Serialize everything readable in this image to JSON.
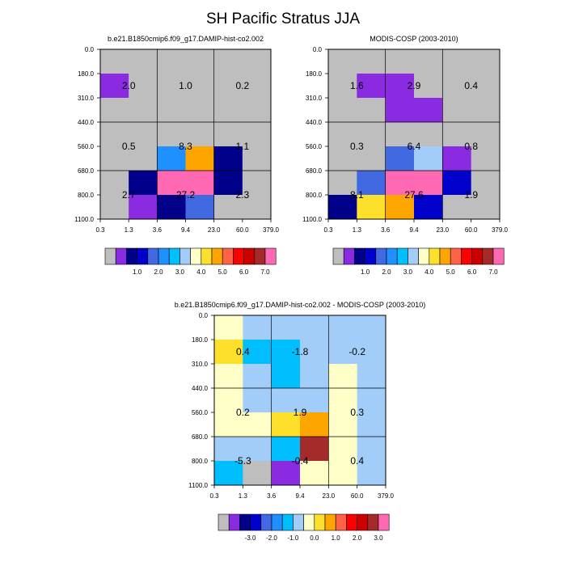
{
  "title": "SH Pacific Stratus JJA",
  "colors": {
    "missing": "#bebebe",
    "grid": "#000000"
  },
  "abs_palette": [
    "#bebebe",
    "#8a2be2",
    "#00008b",
    "#0000cd",
    "#4169e1",
    "#1e90ff",
    "#00bfff",
    "#a2cdf8",
    "#ffffc8",
    "#fde02b",
    "#ffa500",
    "#ff6347",
    "#ff0000",
    "#cd0000",
    "#a52a2a",
    "#ff69b4"
  ],
  "diff_palette": [
    "#bebebe",
    "#8a2be2",
    "#00008b",
    "#0000cd",
    "#4169e1",
    "#1e90ff",
    "#00bfff",
    "#a2cdf8",
    "#ffffc8",
    "#fde02b",
    "#ffa500",
    "#ff6347",
    "#ff0000",
    "#cd0000",
    "#a52a2a",
    "#ff69b4"
  ],
  "chart_data": [
    {
      "type": "heatmap",
      "title": "b.e21.B1850cmip6.f09_g17.DAMIP-hist-co2.002",
      "x_tick_labels": [
        "0.3",
        "1.3",
        "3.6",
        "9.4",
        "23.0",
        "60.0",
        "379.0"
      ],
      "y_tick_labels": [
        "0.0",
        "180.0",
        "310.0",
        "440.0",
        "560.0",
        "680.0",
        "800.0",
        "1100.0"
      ],
      "colorbar_labels": [
        "1.0",
        "2.0",
        "3.0",
        "4.0",
        "5.0",
        "6.0",
        "7.0"
      ],
      "cell_color_index": [
        [
          0,
          0,
          0,
          0,
          0,
          0
        ],
        [
          1,
          0,
          0,
          0,
          0,
          0
        ],
        [
          0,
          0,
          0,
          0,
          0,
          0
        ],
        [
          0,
          0,
          0,
          0,
          0,
          0
        ],
        [
          0,
          0,
          5,
          10,
          2,
          0
        ],
        [
          0,
          2,
          15,
          15,
          2,
          0
        ],
        [
          0,
          1,
          2,
          4,
          0,
          0
        ]
      ],
      "group_labels": [
        [
          "2.0",
          "1.0",
          "0.2"
        ],
        [
          "0.5",
          "8.3",
          "1.1"
        ],
        [
          "2.7",
          "27.2",
          "2.3"
        ]
      ]
    },
    {
      "type": "heatmap",
      "title": "MODIS-COSP (2003-2010)",
      "x_tick_labels": [
        "0.3",
        "1.3",
        "3.6",
        "9.4",
        "23.0",
        "60.0",
        "379.0"
      ],
      "y_tick_labels": [
        "0.0",
        "180.0",
        "310.0",
        "440.0",
        "560.0",
        "680.0",
        "800.0",
        "1100.0"
      ],
      "colorbar_labels": [
        "1.0",
        "2.0",
        "3.0",
        "4.0",
        "5.0",
        "6.0",
        "7.0"
      ],
      "cell_color_index": [
        [
          0,
          0,
          0,
          0,
          0,
          0
        ],
        [
          0,
          1,
          1,
          0,
          0,
          0
        ],
        [
          0,
          0,
          1,
          1,
          0,
          0
        ],
        [
          0,
          0,
          0,
          0,
          0,
          0
        ],
        [
          0,
          0,
          4,
          7,
          1,
          0
        ],
        [
          0,
          4,
          15,
          15,
          3,
          0
        ],
        [
          2,
          9,
          10,
          3,
          0,
          0
        ]
      ],
      "group_labels": [
        [
          "1.6",
          "2.9",
          "0.4"
        ],
        [
          "0.3",
          "6.4",
          "0.8"
        ],
        [
          "8.1",
          "27.6",
          "1.9"
        ]
      ]
    },
    {
      "type": "heatmap",
      "title": "b.e21.B1850cmip6.f09_g17.DAMIP-hist-co2.002 - MODIS-COSP (2003-2010)",
      "x_tick_labels": [
        "0.3",
        "1.3",
        "3.6",
        "9.4",
        "23.0",
        "60.0",
        "379.0"
      ],
      "y_tick_labels": [
        "0.0",
        "180.0",
        "310.0",
        "440.0",
        "560.0",
        "680.0",
        "800.0",
        "1100.0"
      ],
      "colorbar_labels": [
        "-3.0",
        "-2.0",
        "-1.0",
        "0.0",
        "1.0",
        "2.0",
        "3.0"
      ],
      "cell_color_index": [
        [
          8,
          7,
          7,
          7,
          7,
          7
        ],
        [
          9,
          6,
          6,
          7,
          7,
          7
        ],
        [
          8,
          7,
          6,
          7,
          8,
          7
        ],
        [
          8,
          7,
          7,
          7,
          8,
          7
        ],
        [
          8,
          8,
          9,
          10,
          8,
          7
        ],
        [
          7,
          7,
          6,
          14,
          8,
          7
        ],
        [
          6,
          0,
          1,
          8,
          8,
          7
        ]
      ],
      "group_labels": [
        [
          "0.4",
          "-1.8",
          "-0.2"
        ],
        [
          "0.2",
          "1.9",
          "0.3"
        ],
        [
          "-5.3",
          "-0.4",
          "0.4"
        ]
      ]
    }
  ]
}
